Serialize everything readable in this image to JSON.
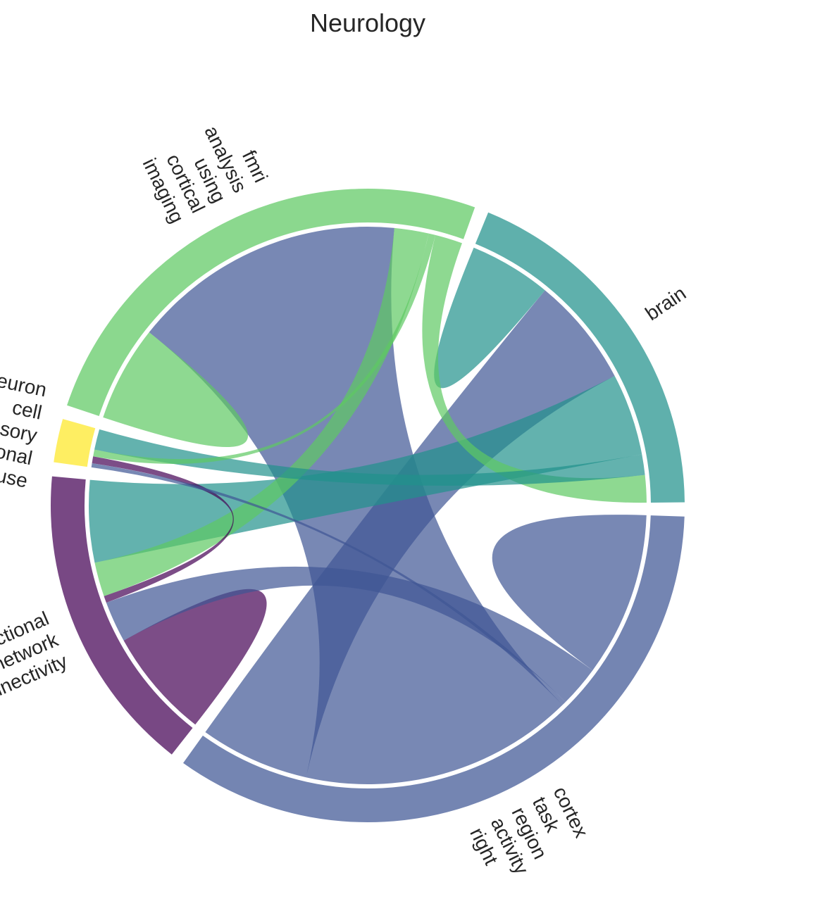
{
  "chart_data": {
    "type": "chord",
    "title": "Neurology",
    "colors": {
      "cortex": "#3f5694",
      "functional": "#440154",
      "neuron": "#fde725",
      "fmri": "#5ec962",
      "brain": "#21918c"
    },
    "groups": [
      {
        "id": "cortex",
        "label_lines": [
          "cortex",
          "task",
          "region",
          "activity",
          "right"
        ]
      },
      {
        "id": "functional",
        "label_lines": [
          "functional",
          "network",
          "connectivity"
        ]
      },
      {
        "id": "neuron",
        "label_lines": [
          "neuron",
          "cell",
          "sensory",
          "neuronal",
          "mouse"
        ]
      },
      {
        "id": "fmri",
        "label_lines": [
          "fmri",
          "analysis",
          "using",
          "cortical",
          "imaging"
        ]
      },
      {
        "id": "brain",
        "label_lines": [
          "brain"
        ]
      }
    ],
    "matrix": [
      [
        12,
        3,
        0.3,
        20,
        8
      ],
      [
        3,
        8,
        0.5,
        2.5,
        6
      ],
      [
        0.3,
        0.5,
        0,
        0.5,
        1.5
      ],
      [
        20,
        2.5,
        0.5,
        7,
        2
      ],
      [
        8,
        6,
        1.5,
        2,
        6
      ]
    ]
  }
}
